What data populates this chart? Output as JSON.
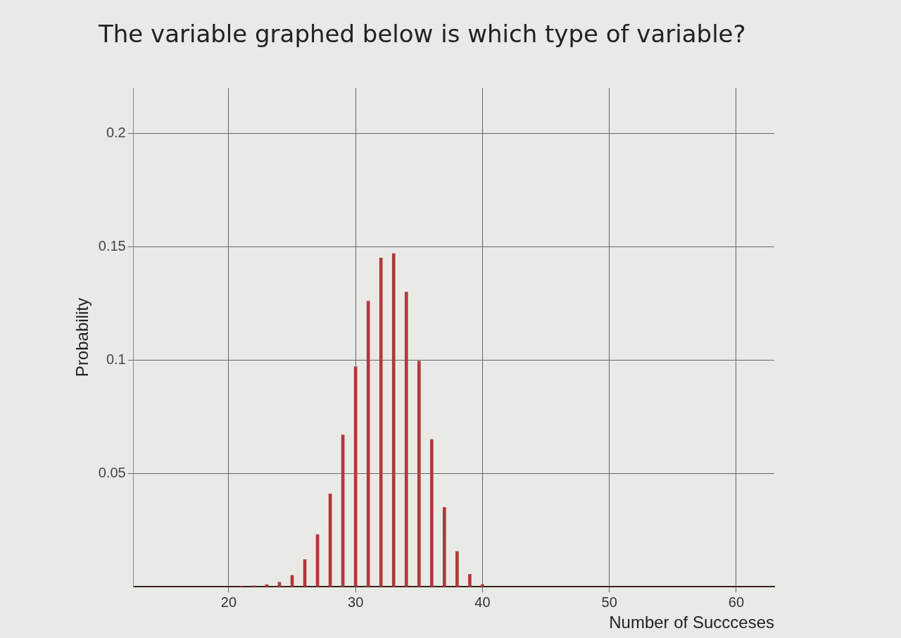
{
  "chart_data": {
    "type": "bar",
    "title": "The variable graphed below is which type of variable?",
    "xlabel": "Number of Succceses",
    "ylabel": "Probability",
    "x": [
      21,
      22,
      23,
      24,
      25,
      26,
      27,
      28,
      29,
      30,
      31,
      32,
      33,
      34,
      35,
      36,
      37,
      38,
      39,
      40
    ],
    "values": [
      0.0002,
      0.0004,
      0.001,
      0.002,
      0.005,
      0.012,
      0.023,
      0.041,
      0.067,
      0.097,
      0.126,
      0.145,
      0.147,
      0.13,
      0.0995,
      0.065,
      0.035,
      0.0156,
      0.0055,
      0.001
    ],
    "color": "#b0393b",
    "xlim": [
      12.5,
      63
    ],
    "xticks": [
      20,
      30,
      40,
      50,
      60
    ],
    "ylim": [
      0,
      0.22
    ],
    "yticks": [
      0.05,
      0.1,
      0.15,
      0.2
    ],
    "grid": true
  }
}
